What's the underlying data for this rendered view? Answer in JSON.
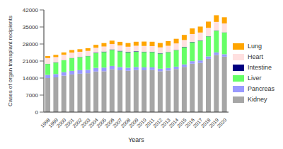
{
  "chart_data": {
    "type": "bar",
    "stacked": true,
    "legend": "right",
    "grid": false,
    "x_label": "Years",
    "y_label": "Cases of organ transplant recipients",
    "categories": [
      "1998",
      "1999",
      "2000",
      "2001",
      "2002",
      "2003",
      "2004",
      "2005",
      "2006",
      "2007",
      "2008",
      "2009",
      "2010",
      "2011",
      "2012",
      "2013",
      "2014",
      "2015",
      "2016",
      "2017",
      "2018",
      "2019",
      "2020"
    ],
    "ylim": [
      0,
      42000
    ],
    "yticks": [
      0,
      7000,
      14000,
      21000,
      28000,
      35000,
      42000
    ],
    "series": [
      {
        "name": "Kidney",
        "color": "#a6a6a6",
        "values": [
          14000,
          14300,
          15000,
          15500,
          15800,
          16000,
          16700,
          16800,
          17600,
          17200,
          17000,
          17300,
          17200,
          17300,
          16800,
          17100,
          17700,
          18600,
          19900,
          20200,
          21900,
          23500,
          22800
        ]
      },
      {
        "name": "Pancreas",
        "color": "#9999ff",
        "values": [
          1300,
          1350,
          1400,
          1450,
          1450,
          1400,
          1500,
          1500,
          1400,
          1300,
          1250,
          1250,
          1200,
          1100,
          1050,
          1050,
          1000,
          1000,
          1050,
          1050,
          1000,
          1050,
          1000
        ]
      },
      {
        "name": "Liver",
        "color": "#66ff66",
        "values": [
          4500,
          4700,
          4900,
          5200,
          5300,
          5600,
          6100,
          6400,
          6600,
          6500,
          6300,
          6300,
          6300,
          6300,
          6250,
          6450,
          6700,
          7100,
          7800,
          8100,
          8250,
          8900,
          8900
        ]
      },
      {
        "name": "Intestine",
        "color": "#000080",
        "values": [
          70,
          70,
          80,
          110,
          110,
          120,
          150,
          180,
          180,
          200,
          190,
          180,
          150,
          130,
          110,
          110,
          140,
          140,
          150,
          110,
          100,
          80,
          90
        ]
      },
      {
        "name": "Heart",
        "color": "#ffe0e0",
        "values": [
          2350,
          2200,
          2200,
          2200,
          2150,
          2050,
          2000,
          2100,
          2200,
          2200,
          2150,
          2250,
          2350,
          2300,
          2400,
          2550,
          2700,
          2800,
          3200,
          3250,
          3400,
          3550,
          3650
        ]
      },
      {
        "name": "Lung",
        "color": "#ffa500",
        "values": [
          850,
          900,
          950,
          1050,
          1050,
          1100,
          1200,
          1400,
          1400,
          1500,
          1500,
          1650,
          1800,
          1800,
          1800,
          1900,
          1900,
          2100,
          2300,
          2450,
          2550,
          2750,
          2550
        ]
      }
    ]
  }
}
